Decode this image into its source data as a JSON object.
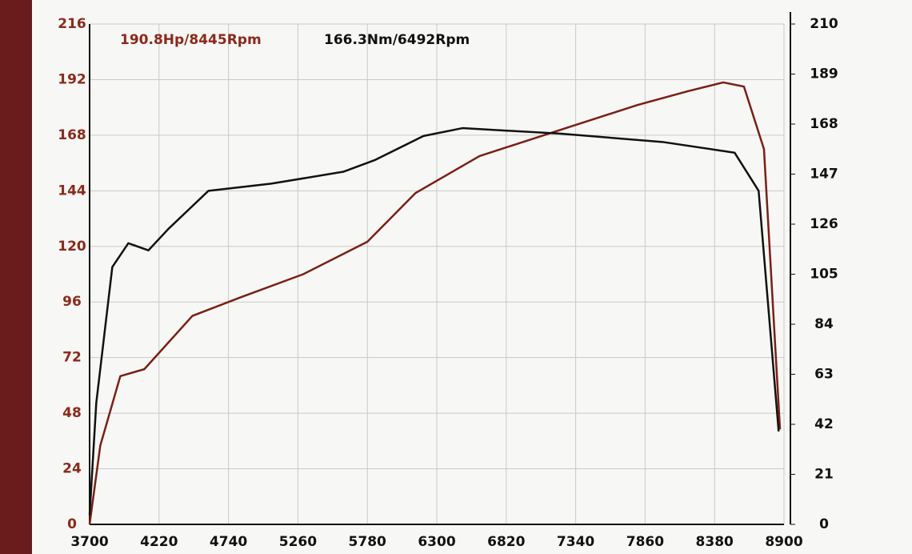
{
  "chart_data": {
    "type": "line",
    "annotations": [
      "190.8Hp/8445Rpm",
      "166.3Nm/6492Rpm"
    ],
    "annotation_colors": [
      "#8b2a1a",
      "#111111"
    ],
    "xlim": [
      3700,
      8900
    ],
    "xticks": [
      3700,
      4220,
      4740,
      5260,
      5780,
      6300,
      6820,
      7340,
      7860,
      8380,
      8900
    ],
    "ylim": [
      0,
      216
    ],
    "yticks": [
      0,
      24,
      48,
      72,
      96,
      120,
      144,
      168,
      192,
      216
    ],
    "y2lim": [
      0,
      210
    ],
    "y2ticks": [
      0,
      21,
      42,
      63,
      84,
      105,
      126,
      147,
      168,
      189,
      210
    ],
    "ytick_color": "#8b2a1a",
    "y2tick_color": "#111111",
    "grid": true,
    "series": [
      {
        "color": "#7a1f14",
        "axis": "y",
        "x": [
          3700,
          3780,
          3930,
          4110,
          4470,
          4830,
          5300,
          5780,
          6140,
          6620,
          7210,
          7800,
          8180,
          8445,
          8600,
          8750,
          8870
        ],
        "values": [
          0,
          34,
          64,
          67,
          90,
          98,
          108,
          122,
          143,
          159,
          170,
          181,
          187,
          190.8,
          189,
          162,
          41
        ]
      },
      {
        "color": "#111111",
        "axis": "y2",
        "x": [
          3700,
          3750,
          3870,
          3990,
          4140,
          4290,
          4590,
          5060,
          5600,
          5840,
          6200,
          6492,
          7220,
          7990,
          8530,
          8710,
          8860
        ],
        "values": [
          4,
          51,
          108,
          118,
          115,
          124,
          140,
          143,
          148,
          153,
          163,
          166.3,
          164,
          160.5,
          156,
          140,
          39
        ]
      }
    ]
  }
}
